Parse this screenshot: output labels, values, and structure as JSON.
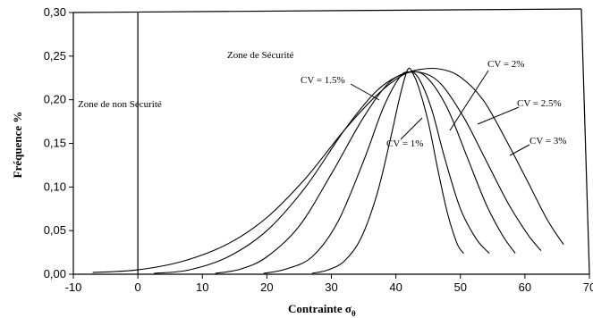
{
  "chart_data": {
    "type": "line",
    "xlabel": "Contrainte σθ",
    "ylabel": "Fréquence %",
    "xlim": [
      -10,
      70
    ],
    "ylim": [
      0,
      0.3
    ],
    "xticks": [
      "-10",
      "0",
      "10",
      "20",
      "30",
      "40",
      "50",
      "60",
      "70"
    ],
    "yticks": [
      "0,00",
      "0,05",
      "0,10",
      "0,15",
      "0,20",
      "0,25",
      "0,30"
    ],
    "grid": false,
    "vertical_line_x": 0,
    "zone_labels": [
      "Zone de non Sécurité",
      "Zone de Sécurité"
    ],
    "series": [
      {
        "name": "CV = 1%",
        "points": [
          [
            27.0,
            0.001
          ],
          [
            29.5,
            0.005
          ],
          [
            32.0,
            0.015
          ],
          [
            34.5,
            0.04
          ],
          [
            37.0,
            0.09
          ],
          [
            39.0,
            0.15
          ],
          [
            40.5,
            0.2
          ],
          [
            41.5,
            0.228
          ],
          [
            42.0,
            0.236
          ],
          [
            42.5,
            0.232
          ],
          [
            43.5,
            0.215
          ],
          [
            45.0,
            0.175
          ],
          [
            46.5,
            0.12
          ],
          [
            48.0,
            0.07
          ],
          [
            49.5,
            0.035
          ],
          [
            50.5,
            0.024
          ]
        ]
      },
      {
        "name": "CV = 1.5%",
        "points": [
          [
            19.5,
            0.001
          ],
          [
            23.0,
            0.006
          ],
          [
            27.0,
            0.02
          ],
          [
            31.0,
            0.06
          ],
          [
            35.0,
            0.13
          ],
          [
            38.0,
            0.19
          ],
          [
            40.5,
            0.225
          ],
          [
            42.0,
            0.232
          ],
          [
            43.5,
            0.225
          ],
          [
            45.5,
            0.19
          ],
          [
            47.5,
            0.135
          ],
          [
            50.0,
            0.075
          ],
          [
            52.5,
            0.04
          ],
          [
            54.5,
            0.024
          ]
        ]
      },
      {
        "name": "CV = 2%",
        "points": [
          [
            12.0,
            0.001
          ],
          [
            16.0,
            0.006
          ],
          [
            20.0,
            0.02
          ],
          [
            25.0,
            0.055
          ],
          [
            30.0,
            0.115
          ],
          [
            35.0,
            0.18
          ],
          [
            39.0,
            0.22
          ],
          [
            42.5,
            0.232
          ],
          [
            45.0,
            0.224
          ],
          [
            48.0,
            0.19
          ],
          [
            51.0,
            0.135
          ],
          [
            54.0,
            0.08
          ],
          [
            56.5,
            0.045
          ],
          [
            58.5,
            0.024
          ]
        ]
      },
      {
        "name": "CV = 2.5%",
        "points": [
          [
            2.5,
            0.001
          ],
          [
            8.0,
            0.005
          ],
          [
            14.0,
            0.02
          ],
          [
            20.0,
            0.05
          ],
          [
            26.0,
            0.1
          ],
          [
            32.0,
            0.165
          ],
          [
            37.0,
            0.21
          ],
          [
            41.0,
            0.229
          ],
          [
            44.0,
            0.231
          ],
          [
            47.0,
            0.218
          ],
          [
            50.5,
            0.18
          ],
          [
            54.0,
            0.13
          ],
          [
            57.5,
            0.08
          ],
          [
            60.5,
            0.045
          ],
          [
            62.5,
            0.027
          ]
        ]
      },
      {
        "name": "CV = 3%",
        "points": [
          [
            -7.0,
            0.002
          ],
          [
            0.0,
            0.005
          ],
          [
            7.0,
            0.015
          ],
          [
            14.0,
            0.035
          ],
          [
            20.0,
            0.065
          ],
          [
            26.0,
            0.11
          ],
          [
            32.0,
            0.165
          ],
          [
            37.0,
            0.205
          ],
          [
            41.0,
            0.228
          ],
          [
            44.0,
            0.235
          ],
          [
            47.0,
            0.235
          ],
          [
            50.0,
            0.226
          ],
          [
            53.5,
            0.2
          ],
          [
            57.0,
            0.155
          ],
          [
            60.5,
            0.105
          ],
          [
            63.5,
            0.062
          ],
          [
            66.0,
            0.034
          ]
        ]
      }
    ]
  }
}
